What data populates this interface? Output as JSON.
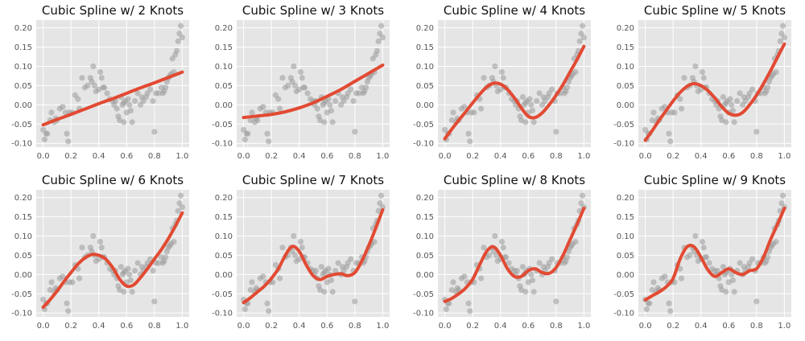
{
  "figure": {
    "style": "ggplot",
    "background": "#ffffff",
    "panel_background": "#e5e5e5",
    "grid_color": "#ffffff",
    "point_color": "#9a9a9a",
    "line_color": "#e24a33"
  },
  "scatter_points": [
    [
      0.0,
      -0.065
    ],
    [
      0.01,
      -0.09
    ],
    [
      0.02,
      -0.075
    ],
    [
      0.03,
      -0.075
    ],
    [
      0.05,
      -0.04
    ],
    [
      0.06,
      -0.02
    ],
    [
      0.08,
      -0.045
    ],
    [
      0.09,
      -0.035
    ],
    [
      0.1,
      -0.04
    ],
    [
      0.12,
      -0.01
    ],
    [
      0.14,
      -0.005
    ],
    [
      0.16,
      -0.02
    ],
    [
      0.17,
      -0.075
    ],
    [
      0.18,
      -0.095
    ],
    [
      0.19,
      -0.02
    ],
    [
      0.21,
      -0.02
    ],
    [
      0.23,
      0.025
    ],
    [
      0.25,
      0.015
    ],
    [
      0.26,
      -0.01
    ],
    [
      0.28,
      0.07
    ],
    [
      0.3,
      0.045
    ],
    [
      0.32,
      0.05
    ],
    [
      0.34,
      0.07
    ],
    [
      0.35,
      0.06
    ],
    [
      0.36,
      0.1
    ],
    [
      0.37,
      0.05
    ],
    [
      0.38,
      0.035
    ],
    [
      0.4,
      0.04
    ],
    [
      0.41,
      0.085
    ],
    [
      0.42,
      0.07
    ],
    [
      0.43,
      0.045
    ],
    [
      0.44,
      0.045
    ],
    [
      0.46,
      0.03
    ],
    [
      0.48,
      0.015
    ],
    [
      0.5,
      0.01
    ],
    [
      0.51,
      0.0
    ],
    [
      0.52,
      0.01
    ],
    [
      0.53,
      -0.01
    ],
    [
      0.54,
      -0.03
    ],
    [
      0.55,
      -0.04
    ],
    [
      0.56,
      0.02
    ],
    [
      0.57,
      0.0
    ],
    [
      0.58,
      -0.045
    ],
    [
      0.59,
      0.01
    ],
    [
      0.6,
      -0.02
    ],
    [
      0.61,
      0.015
    ],
    [
      0.62,
      0.0
    ],
    [
      0.63,
      -0.015
    ],
    [
      0.64,
      -0.045
    ],
    [
      0.66,
      0.01
    ],
    [
      0.68,
      0.03
    ],
    [
      0.7,
      0.0
    ],
    [
      0.71,
      0.02
    ],
    [
      0.72,
      0.01
    ],
    [
      0.74,
      0.02
    ],
    [
      0.75,
      0.03
    ],
    [
      0.77,
      0.04
    ],
    [
      0.79,
      0.01
    ],
    [
      0.8,
      -0.07
    ],
    [
      0.81,
      0.03
    ],
    [
      0.83,
      0.03
    ],
    [
      0.85,
      0.045
    ],
    [
      0.86,
      0.03
    ],
    [
      0.87,
      0.035
    ],
    [
      0.88,
      0.045
    ],
    [
      0.89,
      0.06
    ],
    [
      0.9,
      0.07
    ],
    [
      0.91,
      0.075
    ],
    [
      0.92,
      0.08
    ],
    [
      0.93,
      0.12
    ],
    [
      0.95,
      0.13
    ],
    [
      0.96,
      0.14
    ],
    [
      0.97,
      0.165
    ],
    [
      0.98,
      0.185
    ],
    [
      0.99,
      0.205
    ],
    [
      1.0,
      0.175
    ],
    [
      0.94,
      0.085
    ],
    [
      0.58,
      0.005
    ]
  ],
  "chart_data": [
    {
      "type": "line",
      "title": "Cubic Spline w/ 2 Knots",
      "xlim": [
        -0.05,
        1.05
      ],
      "ylim": [
        -0.11,
        0.22
      ],
      "xticks": [
        "0.0",
        "0.2",
        "0.4",
        "0.6",
        "0.8",
        "1.0"
      ],
      "yticks": [
        "-0.10",
        "-0.05",
        "0.00",
        "0.05",
        "0.10",
        "0.15",
        "0.20"
      ],
      "grid": true,
      "fit": {
        "x": [
          0.0,
          0.1,
          0.2,
          0.3,
          0.4,
          0.5,
          0.6,
          0.7,
          0.8,
          0.9,
          1.0
        ],
        "y": [
          -0.052,
          -0.038,
          -0.025,
          -0.011,
          0.003,
          0.016,
          0.03,
          0.044,
          0.057,
          0.071,
          0.085
        ]
      }
    },
    {
      "type": "line",
      "title": "Cubic Spline w/ 3 Knots",
      "xlim": [
        -0.05,
        1.05
      ],
      "ylim": [
        -0.11,
        0.22
      ],
      "xticks": [
        "0.0",
        "0.2",
        "0.4",
        "0.6",
        "0.8",
        "1.0"
      ],
      "yticks": [
        "-0.10",
        "-0.05",
        "0.00",
        "0.05",
        "0.10",
        "0.15",
        "0.20"
      ],
      "grid": true,
      "fit": {
        "x": [
          0.0,
          0.1,
          0.2,
          0.3,
          0.4,
          0.5,
          0.6,
          0.7,
          0.8,
          0.9,
          1.0
        ],
        "y": [
          -0.033,
          -0.029,
          -0.025,
          -0.018,
          -0.008,
          0.005,
          0.022,
          0.04,
          0.061,
          0.082,
          0.103
        ]
      }
    },
    {
      "type": "line",
      "title": "Cubic Spline w/ 4 Knots",
      "xlim": [
        -0.05,
        1.05
      ],
      "ylim": [
        -0.11,
        0.22
      ],
      "xticks": [
        "0.0",
        "0.2",
        "0.4",
        "0.6",
        "0.8",
        "1.0"
      ],
      "yticks": [
        "-0.10",
        "-0.05",
        "0.00",
        "0.05",
        "0.10",
        "0.15",
        "0.20"
      ],
      "grid": true,
      "fit": {
        "x": [
          0.0,
          0.05,
          0.1,
          0.15,
          0.2,
          0.25,
          0.3,
          0.35,
          0.4,
          0.45,
          0.5,
          0.55,
          0.6,
          0.65,
          0.7,
          0.75,
          0.8,
          0.85,
          0.9,
          0.95,
          1.0
        ],
        "y": [
          -0.088,
          -0.063,
          -0.04,
          -0.018,
          0.005,
          0.027,
          0.046,
          0.056,
          0.054,
          0.04,
          0.018,
          -0.008,
          -0.03,
          -0.033,
          -0.021,
          0.0,
          0.025,
          0.053,
          0.085,
          0.117,
          0.152
        ]
      }
    },
    {
      "type": "line",
      "title": "Cubic Spline w/ 5 Knots",
      "xlim": [
        -0.05,
        1.05
      ],
      "ylim": [
        -0.11,
        0.22
      ],
      "xticks": [
        "0.0",
        "0.2",
        "0.4",
        "0.6",
        "0.8",
        "1.0"
      ],
      "yticks": [
        "-0.10",
        "-0.05",
        "0.00",
        "0.05",
        "0.10",
        "0.15",
        "0.20"
      ],
      "grid": true,
      "fit": {
        "x": [
          0.0,
          0.05,
          0.1,
          0.15,
          0.2,
          0.25,
          0.3,
          0.35,
          0.4,
          0.45,
          0.5,
          0.55,
          0.6,
          0.65,
          0.7,
          0.75,
          0.8,
          0.85,
          0.9,
          0.95,
          1.0
        ],
        "y": [
          -0.092,
          -0.067,
          -0.04,
          -0.015,
          0.01,
          0.032,
          0.048,
          0.055,
          0.05,
          0.037,
          0.018,
          -0.005,
          -0.022,
          -0.027,
          -0.02,
          0.0,
          0.025,
          0.055,
          0.088,
          0.123,
          0.158
        ]
      }
    },
    {
      "type": "line",
      "title": "Cubic Spline w/ 6 Knots",
      "xlim": [
        -0.05,
        1.05
      ],
      "ylim": [
        -0.11,
        0.22
      ],
      "xticks": [
        "0.0",
        "0.2",
        "0.4",
        "0.6",
        "0.8",
        "1.0"
      ],
      "yticks": [
        "-0.10",
        "-0.05",
        "0.00",
        "0.05",
        "0.10",
        "0.15",
        "0.20"
      ],
      "grid": true,
      "fit": {
        "x": [
          0.0,
          0.05,
          0.1,
          0.15,
          0.2,
          0.25,
          0.3,
          0.35,
          0.4,
          0.45,
          0.5,
          0.55,
          0.6,
          0.65,
          0.7,
          0.75,
          0.8,
          0.85,
          0.9,
          0.95,
          1.0
        ],
        "y": [
          -0.085,
          -0.065,
          -0.043,
          -0.018,
          0.005,
          0.027,
          0.043,
          0.052,
          0.05,
          0.04,
          0.018,
          -0.012,
          -0.03,
          -0.027,
          -0.008,
          0.015,
          0.04,
          0.065,
          0.093,
          0.125,
          0.16
        ]
      }
    },
    {
      "type": "line",
      "title": "Cubic Spline w/ 7 Knots",
      "xlim": [
        -0.05,
        1.05
      ],
      "ylim": [
        -0.11,
        0.22
      ],
      "xticks": [
        "0.0",
        "0.2",
        "0.4",
        "0.6",
        "0.8",
        "1.0"
      ],
      "yticks": [
        "-0.10",
        "-0.05",
        "0.00",
        "0.05",
        "0.10",
        "0.15",
        "0.20"
      ],
      "grid": true,
      "fit": {
        "x": [
          0.0,
          0.05,
          0.1,
          0.15,
          0.2,
          0.25,
          0.3,
          0.35,
          0.4,
          0.45,
          0.5,
          0.55,
          0.6,
          0.65,
          0.7,
          0.75,
          0.8,
          0.85,
          0.9,
          0.95,
          1.0
        ],
        "y": [
          -0.073,
          -0.06,
          -0.045,
          -0.03,
          -0.01,
          0.015,
          0.05,
          0.073,
          0.06,
          0.025,
          -0.003,
          -0.013,
          -0.005,
          0.0,
          0.002,
          -0.003,
          0.005,
          0.035,
          0.075,
          0.12,
          0.168
        ]
      }
    },
    {
      "type": "line",
      "title": "Cubic Spline w/ 8 Knots",
      "xlim": [
        -0.05,
        1.05
      ],
      "ylim": [
        -0.11,
        0.22
      ],
      "xticks": [
        "0.0",
        "0.2",
        "0.4",
        "0.6",
        "0.8",
        "1.0"
      ],
      "yticks": [
        "-0.10",
        "-0.05",
        "0.00",
        "0.05",
        "0.10",
        "0.15",
        "0.20"
      ],
      "grid": true,
      "fit": {
        "x": [
          0.0,
          0.05,
          0.1,
          0.15,
          0.2,
          0.25,
          0.3,
          0.35,
          0.4,
          0.45,
          0.5,
          0.55,
          0.6,
          0.65,
          0.7,
          0.75,
          0.8,
          0.85,
          0.9,
          0.95,
          1.0
        ],
        "y": [
          -0.07,
          -0.062,
          -0.05,
          -0.035,
          -0.012,
          0.025,
          0.06,
          0.072,
          0.05,
          0.015,
          -0.005,
          -0.005,
          0.01,
          0.015,
          0.005,
          0.003,
          0.018,
          0.05,
          0.09,
          0.13,
          0.172
        ]
      }
    },
    {
      "type": "line",
      "title": "Cubic Spline w/ 9 Knots",
      "xlim": [
        -0.05,
        1.05
      ],
      "ylim": [
        -0.11,
        0.22
      ],
      "xticks": [
        "0.0",
        "0.2",
        "0.4",
        "0.6",
        "0.8",
        "1.0"
      ],
      "yticks": [
        "-0.10",
        "-0.05",
        "0.00",
        "0.05",
        "0.10",
        "0.15",
        "0.20"
      ],
      "grid": true,
      "fit": {
        "x": [
          0.0,
          0.05,
          0.1,
          0.15,
          0.2,
          0.25,
          0.3,
          0.35,
          0.4,
          0.45,
          0.5,
          0.55,
          0.6,
          0.65,
          0.7,
          0.75,
          0.8,
          0.85,
          0.9,
          0.95,
          1.0
        ],
        "y": [
          -0.066,
          -0.055,
          -0.045,
          -0.032,
          -0.01,
          0.04,
          0.072,
          0.072,
          0.045,
          0.012,
          -0.005,
          0.005,
          0.015,
          0.005,
          0.0,
          0.01,
          0.015,
          0.045,
          0.09,
          0.13,
          0.172
        ]
      }
    }
  ]
}
